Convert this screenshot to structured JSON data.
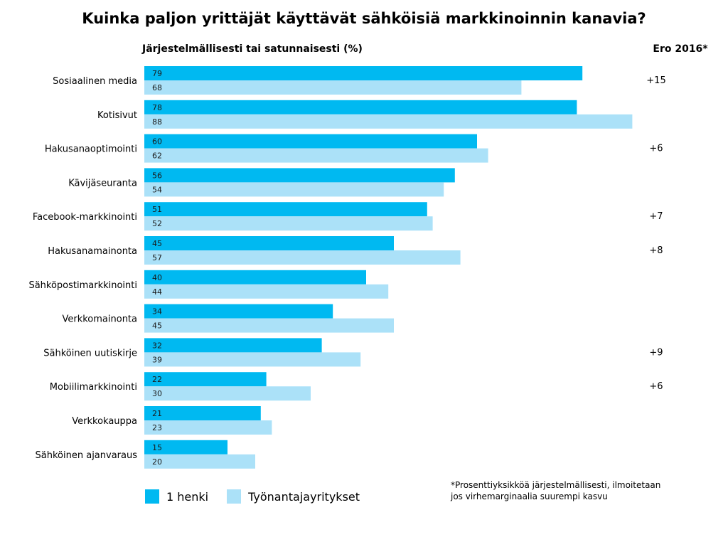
{
  "chart_data": {
    "type": "bar",
    "orientation": "horizontal",
    "title": "Kuinka paljon yrittäjät käyttävät sähköisiä markkinoinnin kanavia?",
    "subtitle": "Järjestelmällisesti tai satunnaisesti (%)",
    "diff_header": "Ero 2016*",
    "categories": [
      "Sosiaalinen media",
      "Kotisivut",
      "Hakusanaoptimointi",
      "Kävijäseuranta",
      "Facebook-markkinointi",
      "Hakusanamainonta",
      "Sähköpostimarkkinointi",
      "Verkkomainonta",
      "Sähköinen uutiskirje",
      "Mobiilimarkkinointi",
      "Verkkokauppa",
      "Sähköinen ajanvaraus"
    ],
    "series": [
      {
        "name": "1 henki",
        "color": "#00b9f1",
        "values": [
          79,
          78,
          60,
          56,
          51,
          45,
          40,
          34,
          32,
          22,
          21,
          15
        ]
      },
      {
        "name": "Työnantajayritykset",
        "color": "#abe1f8",
        "values": [
          68,
          88,
          62,
          54,
          52,
          57,
          44,
          45,
          39,
          30,
          23,
          20
        ]
      }
    ],
    "differences": [
      "+15",
      "",
      "+6",
      "",
      "+7",
      "+8",
      "",
      "",
      "+9",
      "+6",
      "",
      ""
    ],
    "xlim": [
      0,
      100
    ],
    "grid": false,
    "legend_position": "bottom-left"
  },
  "footnote": "*Prosenttiyksikköä järjestelmällisesti, ilmoitetaan\njos virhemarginaalia suurempi kasvu"
}
